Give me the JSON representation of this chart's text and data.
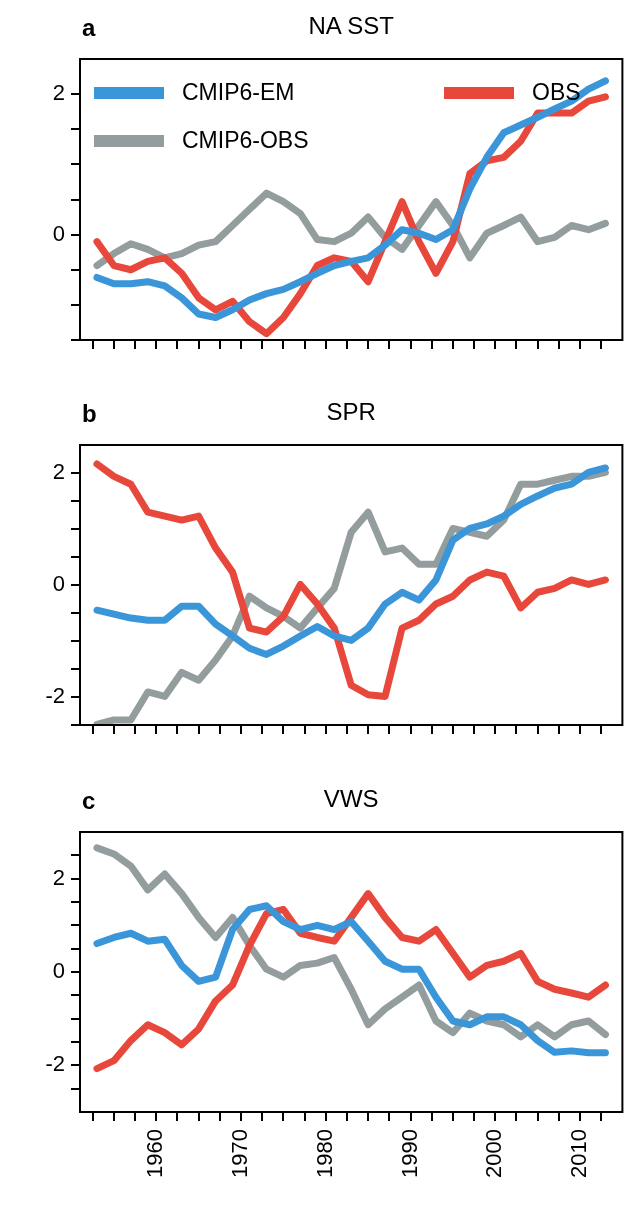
{
  "chart_data": [
    {
      "type": "line",
      "title": "NA SST",
      "annotations": [
        "a"
      ],
      "legend": "top left",
      "grid": false,
      "tick_labels": "y",
      "x": [
        1953,
        1955,
        1957,
        1959,
        1961,
        1963,
        1965,
        1967,
        1969,
        1971,
        1973,
        1975,
        1977,
        1979,
        1981,
        1983,
        1985,
        1987,
        1989,
        1991,
        1993,
        1995,
        1997,
        1999,
        2001,
        2003,
        2005,
        2007,
        2009,
        2011,
        2013
      ],
      "xlim": [
        1951,
        2015
      ],
      "xticks": [
        {
          "value": 1952.5,
          "label": null
        },
        {
          "value": 1955,
          "label": null
        },
        {
          "value": 1957.5,
          "label": null
        },
        {
          "value": 1960,
          "label": null
        },
        {
          "value": 1962.5,
          "label": null
        },
        {
          "value": 1965,
          "label": null
        },
        {
          "value": 1967.5,
          "label": null
        },
        {
          "value": 1970,
          "label": null
        },
        {
          "value": 1972.5,
          "label": null
        },
        {
          "value": 1975,
          "label": null
        },
        {
          "value": 1977.5,
          "label": null
        },
        {
          "value": 1980,
          "label": null
        },
        {
          "value": 1982.5,
          "label": null
        },
        {
          "value": 1985,
          "label": null
        },
        {
          "value": 1987.5,
          "label": null
        },
        {
          "value": 1990,
          "label": null
        },
        {
          "value": 1992.5,
          "label": null
        },
        {
          "value": 1995,
          "label": null
        },
        {
          "value": 1997.5,
          "label": null
        },
        {
          "value": 2000,
          "label": null
        },
        {
          "value": 2002.5,
          "label": null
        },
        {
          "value": 2005,
          "label": null
        },
        {
          "value": 2007.5,
          "label": null
        },
        {
          "value": 2010,
          "label": null
        },
        {
          "value": 2012.5,
          "label": null
        }
      ],
      "ylim": [
        -1.5,
        2.5
      ],
      "yticks": [
        {
          "value": -1.5,
          "label": null
        },
        {
          "value": -1,
          "label": null
        },
        {
          "value": -0.5,
          "label": null
        },
        0,
        {
          "value": 0.5,
          "label": null
        },
        {
          "value": 1,
          "label": null
        },
        {
          "value": 1.5,
          "label": null
        },
        2
      ],
      "series": [
        {
          "name": "CMIP6-EM",
          "color": "#3a96d8",
          "values": [
            -0.61,
            -0.7,
            -0.7,
            -0.67,
            -0.73,
            -0.9,
            -1.13,
            -1.18,
            -1.07,
            -0.93,
            -0.84,
            -0.78,
            -0.67,
            -0.55,
            -0.44,
            -0.38,
            -0.33,
            -0.15,
            0.07,
            0.02,
            -0.07,
            0.07,
            0.65,
            1.1,
            1.45,
            1.56,
            1.67,
            1.79,
            1.9,
            2.07,
            2.19
          ]
        },
        {
          "name": "OBS",
          "color": "#e8483b",
          "values": [
            -0.1,
            -0.44,
            -0.5,
            -0.38,
            -0.33,
            -0.55,
            -0.9,
            -1.07,
            -0.95,
            -1.24,
            -1.41,
            -1.18,
            -0.84,
            -0.44,
            -0.33,
            -0.38,
            -0.67,
            -0.1,
            0.47,
            -0.1,
            -0.55,
            -0.1,
            0.87,
            1.05,
            1.1,
            1.33,
            1.73,
            1.73,
            1.73,
            1.9,
            1.96
          ]
        },
        {
          "name": "CMIP6-OBS",
          "color": "#939d9d",
          "values": [
            -0.44,
            -0.27,
            -0.13,
            -0.21,
            -0.33,
            -0.27,
            -0.15,
            -0.1,
            0.13,
            0.36,
            0.59,
            0.47,
            0.3,
            -0.07,
            -0.1,
            0.02,
            0.25,
            -0.04,
            -0.21,
            0.13,
            0.47,
            0.13,
            -0.33,
            0.02,
            0.13,
            0.25,
            -0.1,
            -0.04,
            0.13,
            0.07,
            0.16
          ]
        }
      ]
    },
    {
      "type": "line",
      "title": "SPR",
      "annotations": [
        "b"
      ],
      "grid": false,
      "tick_labels": "y",
      "x": [
        1953,
        1955,
        1957,
        1959,
        1961,
        1963,
        1965,
        1967,
        1969,
        1971,
        1973,
        1975,
        1977,
        1979,
        1981,
        1983,
        1985,
        1987,
        1989,
        1991,
        1993,
        1995,
        1997,
        1999,
        2001,
        2003,
        2005,
        2007,
        2009,
        2011,
        2013
      ],
      "xlim": [
        1951,
        2015
      ],
      "xticks": [
        {
          "value": 1952.5,
          "label": null
        },
        {
          "value": 1955,
          "label": null
        },
        {
          "value": 1957.5,
          "label": null
        },
        {
          "value": 1960,
          "label": null
        },
        {
          "value": 1962.5,
          "label": null
        },
        {
          "value": 1965,
          "label": null
        },
        {
          "value": 1967.5,
          "label": null
        },
        {
          "value": 1970,
          "label": null
        },
        {
          "value": 1972.5,
          "label": null
        },
        {
          "value": 1975,
          "label": null
        },
        {
          "value": 1977.5,
          "label": null
        },
        {
          "value": 1980,
          "label": null
        },
        {
          "value": 1982.5,
          "label": null
        },
        {
          "value": 1985,
          "label": null
        },
        {
          "value": 1987.5,
          "label": null
        },
        {
          "value": 1990,
          "label": null
        },
        {
          "value": 1992.5,
          "label": null
        },
        {
          "value": 1995,
          "label": null
        },
        {
          "value": 1997.5,
          "label": null
        },
        {
          "value": 2000,
          "label": null
        },
        {
          "value": 2002.5,
          "label": null
        },
        {
          "value": 2005,
          "label": null
        },
        {
          "value": 2007.5,
          "label": null
        },
        {
          "value": 2010,
          "label": null
        },
        {
          "value": 2012.5,
          "label": null
        }
      ],
      "ylim": [
        -2.5,
        2.5
      ],
      "yticks": [
        {
          "value": -2.5,
          "label": null
        },
        -2,
        {
          "value": -1.5,
          "label": null
        },
        {
          "value": -1,
          "label": null
        },
        {
          "value": -0.5,
          "label": null
        },
        0,
        {
          "value": 0.5,
          "label": null
        },
        {
          "value": 1,
          "label": null
        },
        {
          "value": 1.5,
          "label": null
        },
        2
      ],
      "series": [
        {
          "color": "#3a96d8",
          "values": [
            -0.45,
            -0.52,
            -0.59,
            -0.63,
            -0.63,
            -0.38,
            -0.38,
            -0.7,
            -0.91,
            -1.13,
            -1.24,
            -1.09,
            -0.91,
            -0.74,
            -0.91,
            -0.99,
            -0.77,
            -0.34,
            -0.13,
            -0.27,
            0.09,
            0.8,
            1.01,
            1.09,
            1.23,
            1.44,
            1.59,
            1.73,
            1.8,
            2.01,
            2.09
          ]
        },
        {
          "color": "#e8483b",
          "values": [
            2.16,
            1.94,
            1.8,
            1.3,
            1.23,
            1.16,
            1.23,
            0.66,
            0.23,
            -0.77,
            -0.84,
            -0.56,
            0.01,
            -0.34,
            -0.77,
            -1.79,
            -1.96,
            -1.99,
            -0.77,
            -0.63,
            -0.34,
            -0.2,
            0.09,
            0.23,
            0.16,
            -0.41,
            -0.13,
            -0.06,
            0.09,
            0.01,
            0.09
          ]
        },
        {
          "color": "#939d9d",
          "values": [
            -2.49,
            -2.41,
            -2.41,
            -1.91,
            -1.99,
            -1.56,
            -1.7,
            -1.34,
            -0.91,
            -0.2,
            -0.41,
            -0.56,
            -0.77,
            -0.41,
            -0.06,
            0.94,
            1.3,
            0.59,
            0.66,
            0.37,
            0.37,
            1.01,
            0.94,
            0.87,
            1.16,
            1.8,
            1.8,
            1.87,
            1.94,
            1.94,
            2.01
          ]
        }
      ]
    },
    {
      "type": "line",
      "title": "VWS",
      "annotations": [
        "c"
      ],
      "grid": false,
      "x": [
        1953,
        1955,
        1957,
        1959,
        1961,
        1963,
        1965,
        1967,
        1969,
        1971,
        1973,
        1975,
        1977,
        1979,
        1981,
        1983,
        1985,
        1987,
        1989,
        1991,
        1993,
        1995,
        1997,
        1999,
        2001,
        2003,
        2005,
        2007,
        2009,
        2011,
        2013
      ],
      "xlim": [
        1951,
        2015
      ],
      "xticks": [
        {
          "value": 1952.5,
          "label": null
        },
        {
          "value": 1955,
          "label": null
        },
        {
          "value": 1957.5,
          "label": null
        },
        1960,
        {
          "value": 1962.5,
          "label": null
        },
        {
          "value": 1965,
          "label": null
        },
        {
          "value": 1967.5,
          "label": null
        },
        1970,
        {
          "value": 1972.5,
          "label": null
        },
        {
          "value": 1975,
          "label": null
        },
        {
          "value": 1977.5,
          "label": null
        },
        1980,
        {
          "value": 1982.5,
          "label": null
        },
        {
          "value": 1985,
          "label": null
        },
        {
          "value": 1987.5,
          "label": null
        },
        1990,
        {
          "value": 1992.5,
          "label": null
        },
        {
          "value": 1995,
          "label": null
        },
        {
          "value": 1997.5,
          "label": null
        },
        2000,
        {
          "value": 2002.5,
          "label": null
        },
        {
          "value": 2005,
          "label": null
        },
        {
          "value": 2007.5,
          "label": null
        },
        2010,
        {
          "value": 2012.5,
          "label": null
        }
      ],
      "ylim": [
        -3,
        3
      ],
      "yticks": [
        {
          "value": -2.5,
          "label": null
        },
        -2,
        {
          "value": -1.5,
          "label": null
        },
        {
          "value": -1,
          "label": null
        },
        {
          "value": -0.5,
          "label": null
        },
        0,
        {
          "value": 0.5,
          "label": null
        },
        {
          "value": 1,
          "label": null
        },
        {
          "value": 1.5,
          "label": null
        },
        2,
        {
          "value": 2.5,
          "label": null
        }
      ],
      "series": [
        {
          "color": "#3a96d8",
          "values": [
            0.61,
            0.74,
            0.83,
            0.66,
            0.7,
            0.14,
            -0.2,
            -0.11,
            0.91,
            1.34,
            1.42,
            1.08,
            0.91,
            1.0,
            0.91,
            1.08,
            0.66,
            0.23,
            0.06,
            0.06,
            -0.54,
            -1.05,
            -1.13,
            -0.96,
            -0.96,
            -1.13,
            -1.47,
            -1.72,
            -1.69,
            -1.73,
            -1.73
          ]
        },
        {
          "color": "#e8483b",
          "values": [
            -2.07,
            -1.9,
            -1.47,
            -1.13,
            -1.3,
            -1.56,
            -1.22,
            -0.62,
            -0.28,
            0.57,
            1.25,
            1.34,
            0.83,
            0.74,
            0.66,
            1.17,
            1.68,
            1.17,
            0.74,
            0.66,
            0.91,
            0.4,
            -0.11,
            0.14,
            0.23,
            0.4,
            -0.2,
            -0.37,
            -0.45,
            -0.54,
            -0.28
          ]
        },
        {
          "color": "#939d9d",
          "values": [
            2.66,
            2.53,
            2.27,
            1.76,
            2.1,
            1.68,
            1.17,
            0.74,
            1.17,
            0.57,
            0.06,
            -0.11,
            0.14,
            0.19,
            0.31,
            -0.37,
            -1.13,
            -0.79,
            -0.54,
            -0.28,
            -1.05,
            -1.3,
            -0.88,
            -1.05,
            -1.13,
            -1.39,
            -1.13,
            -1.39,
            -1.13,
            -1.05,
            -1.34
          ]
        }
      ]
    }
  ]
}
